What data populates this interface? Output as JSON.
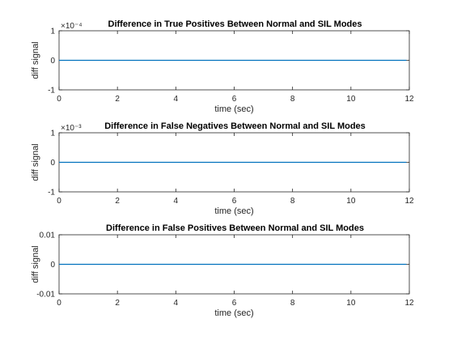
{
  "chart_data": [
    {
      "type": "line",
      "title": "Difference in True Positives Between Normal and SIL Modes",
      "xlabel": "time (sec)",
      "ylabel": "diff signal",
      "xlim": [
        0,
        12
      ],
      "ylim": [
        -1,
        1
      ],
      "y_exponent": "×10⁻⁴",
      "x_ticks": [
        0,
        2,
        4,
        6,
        8,
        10,
        12
      ],
      "y_ticks": [
        -1,
        0,
        1
      ],
      "series": [
        {
          "x": [
            0,
            11.9
          ],
          "y": [
            0,
            0
          ],
          "color": "#0072BD"
        }
      ]
    },
    {
      "type": "line",
      "title": "Difference in False Negatives Between Normal and SIL Modes",
      "xlabel": "time (sec)",
      "ylabel": "diff signal",
      "xlim": [
        0,
        12
      ],
      "ylim": [
        -1,
        1
      ],
      "y_exponent": "×10⁻³",
      "x_ticks": [
        0,
        2,
        4,
        6,
        8,
        10,
        12
      ],
      "y_ticks": [
        -1,
        0,
        1
      ],
      "series": [
        {
          "x": [
            0,
            11.9
          ],
          "y": [
            0,
            0
          ],
          "color": "#0072BD"
        }
      ]
    },
    {
      "type": "line",
      "title": "Difference in False Positives Between Normal and SIL Modes",
      "xlabel": "time (sec)",
      "ylabel": "diff signal",
      "xlim": [
        0,
        12
      ],
      "ylim": [
        -0.01,
        0.01
      ],
      "y_exponent": "",
      "x_ticks": [
        0,
        2,
        4,
        6,
        8,
        10,
        12
      ],
      "y_ticks": [
        -0.01,
        0,
        0.01
      ],
      "y_tick_labels": [
        "-0.01",
        "0",
        "0.01"
      ],
      "series": [
        {
          "x": [
            0,
            11.9
          ],
          "y": [
            0,
            0
          ],
          "color": "#0072BD"
        }
      ]
    }
  ]
}
